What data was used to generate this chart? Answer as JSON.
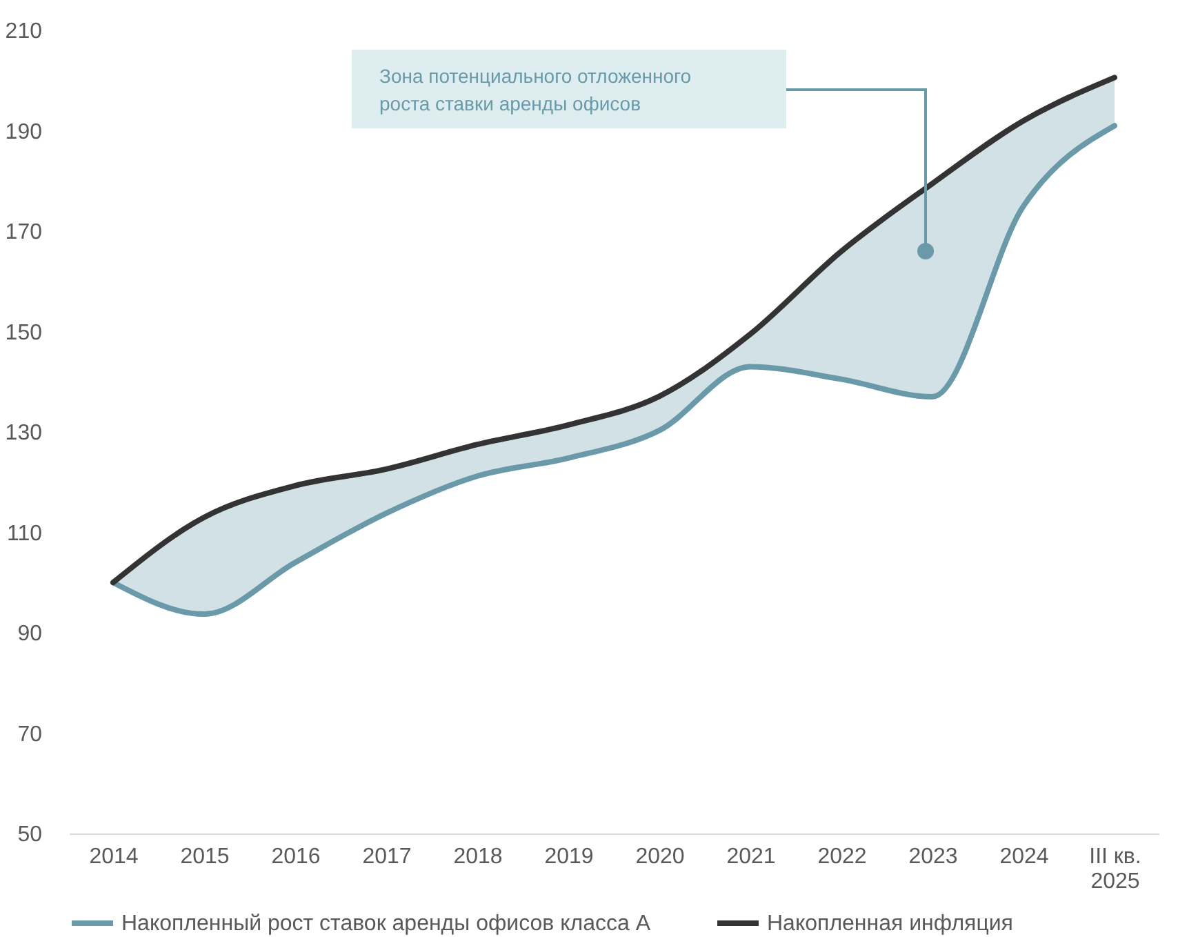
{
  "chart_data": {
    "type": "line",
    "categories": [
      "2014",
      "2015",
      "2016",
      "2017",
      "2018",
      "2019",
      "2020",
      "2021",
      "2022",
      "2023",
      "2024",
      "III кв. 2025"
    ],
    "series": [
      {
        "name": "Накопленный рост ставок аренды офисов класса А",
        "color": "#6a9aaa",
        "values": [
          100,
          93.7,
          104,
          113.8,
          121.2,
          124.8,
          130.3,
          143,
          140.5,
          137,
          175,
          191
        ],
        "lower": [
          100,
          93.7,
          104,
          113.8,
          121.2,
          124.8,
          130.3,
          143,
          140.5,
          137,
          175,
          191
        ],
        "upper": [
          100,
          113,
          119.3,
          122.6,
          127.5,
          131.4,
          137.1,
          149.5,
          166,
          179.5,
          192,
          200.6
        ]
      },
      {
        "name": "Накопленная инфляция",
        "color": "#333333",
        "values": [
          100,
          113,
          119.3,
          122.6,
          127.5,
          131.4,
          137.1,
          149.5,
          166,
          179.5,
          192,
          200.6
        ]
      }
    ],
    "ylim": [
      50,
      210
    ],
    "yticks": [
      50,
      70,
      90,
      110,
      130,
      150,
      170,
      190,
      210
    ],
    "grid": false,
    "legend": "bottom",
    "marker": "none",
    "line_style": "solid",
    "annotations": [
      "Зона потенциального отложенного роста ставки аренды офисов"
    ]
  }
}
